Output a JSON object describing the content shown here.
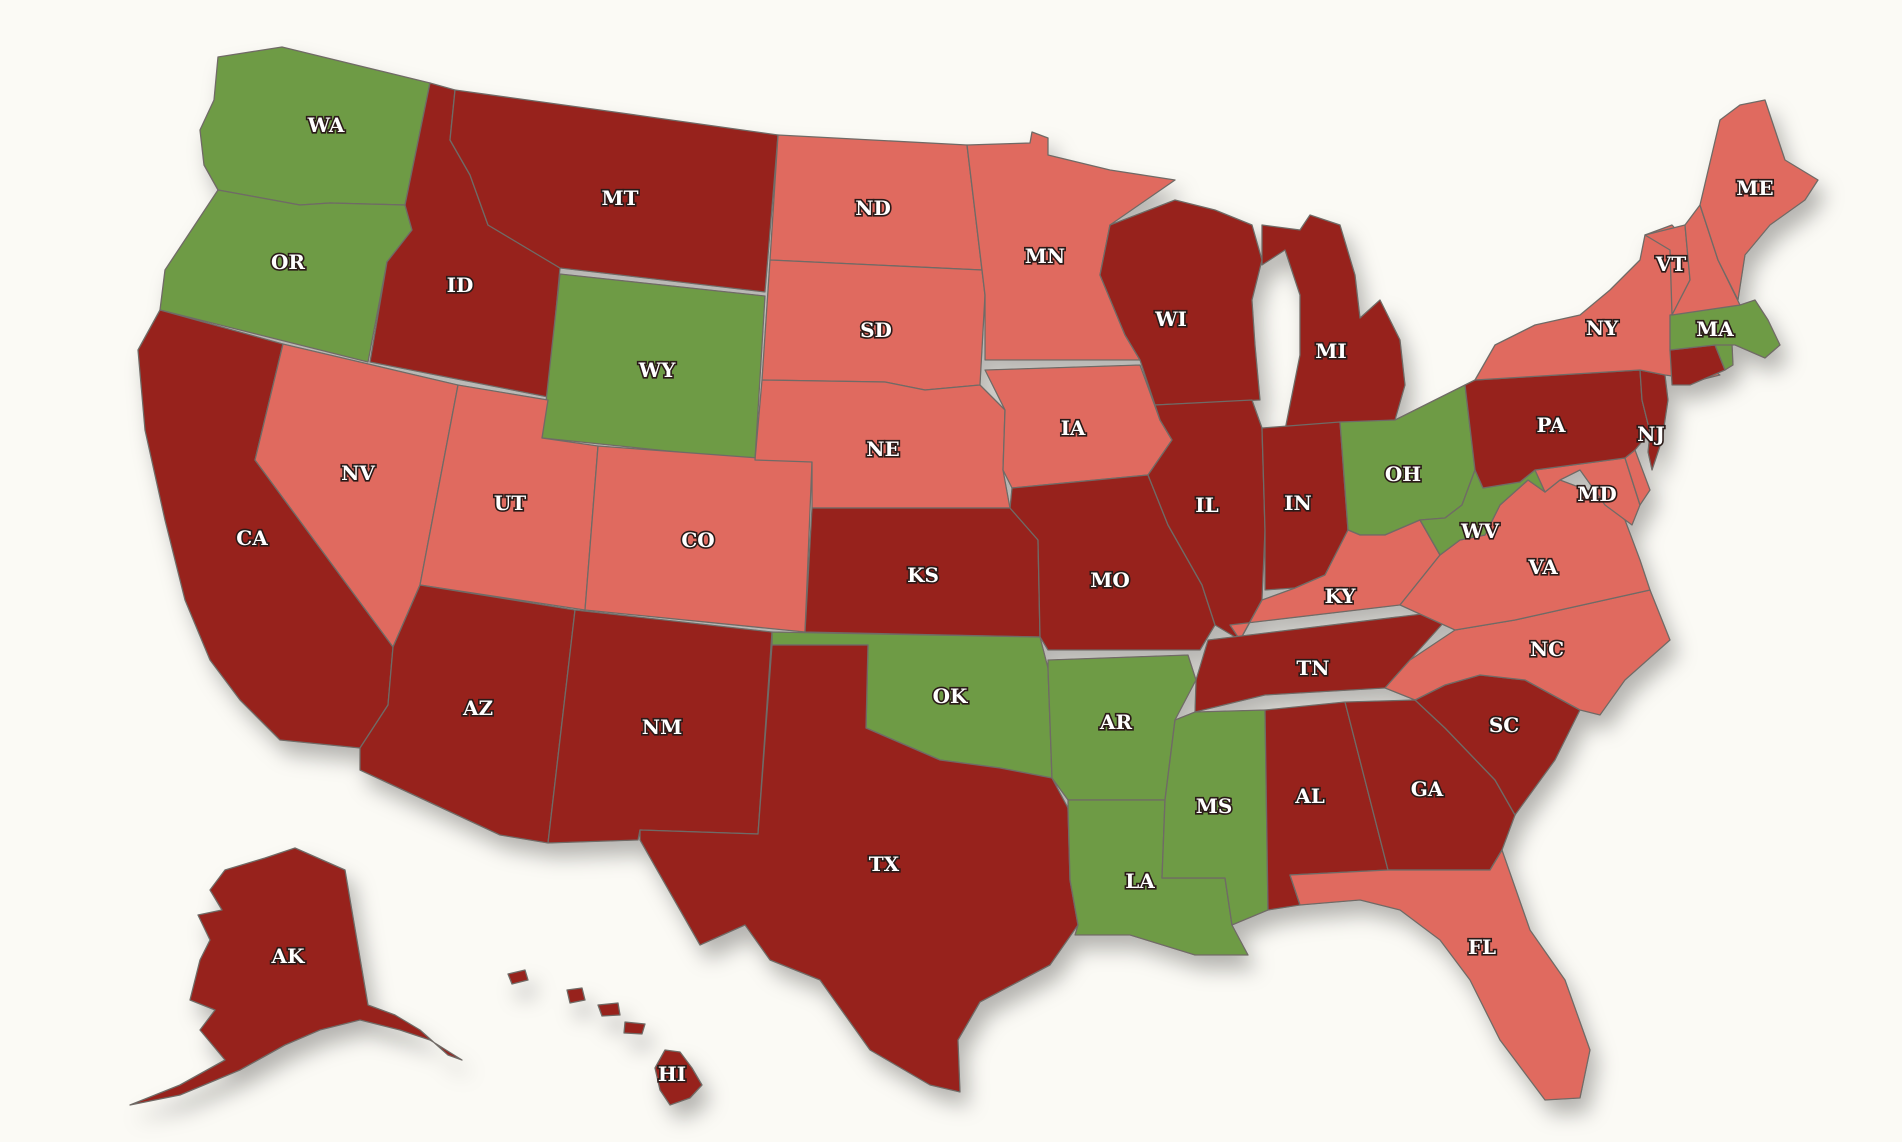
{
  "map": {
    "colors": {
      "dark": "#97221b",
      "light": "#e06a5e",
      "green": "#6e9b44",
      "background": "#fbfaf5",
      "border": "#6f6a66"
    },
    "states": [
      {
        "id": "WA",
        "label": "WA",
        "category": "green"
      },
      {
        "id": "OR",
        "label": "OR",
        "category": "green"
      },
      {
        "id": "CA",
        "label": "CA",
        "category": "dark"
      },
      {
        "id": "ID",
        "label": "ID",
        "category": "dark"
      },
      {
        "id": "NV",
        "label": "NV",
        "category": "light"
      },
      {
        "id": "MT",
        "label": "MT",
        "category": "dark"
      },
      {
        "id": "WY",
        "label": "WY",
        "category": "green"
      },
      {
        "id": "UT",
        "label": "UT",
        "category": "light"
      },
      {
        "id": "AZ",
        "label": "AZ",
        "category": "dark"
      },
      {
        "id": "CO",
        "label": "CO",
        "category": "light"
      },
      {
        "id": "NM",
        "label": "NM",
        "category": "dark"
      },
      {
        "id": "ND",
        "label": "ND",
        "category": "light"
      },
      {
        "id": "SD",
        "label": "SD",
        "category": "light"
      },
      {
        "id": "NE",
        "label": "NE",
        "category": "light"
      },
      {
        "id": "KS",
        "label": "KS",
        "category": "dark"
      },
      {
        "id": "OK",
        "label": "OK",
        "category": "green"
      },
      {
        "id": "TX",
        "label": "TX",
        "category": "dark"
      },
      {
        "id": "MN",
        "label": "MN",
        "category": "light"
      },
      {
        "id": "IA",
        "label": "IA",
        "category": "light"
      },
      {
        "id": "MO",
        "label": "MO",
        "category": "dark"
      },
      {
        "id": "AR",
        "label": "AR",
        "category": "green"
      },
      {
        "id": "LA",
        "label": "LA",
        "category": "green"
      },
      {
        "id": "WI",
        "label": "WI",
        "category": "dark"
      },
      {
        "id": "IL",
        "label": "IL",
        "category": "dark"
      },
      {
        "id": "MI",
        "label": "MI",
        "category": "dark"
      },
      {
        "id": "IN",
        "label": "IN",
        "category": "dark"
      },
      {
        "id": "OH",
        "label": "OH",
        "category": "green"
      },
      {
        "id": "KY",
        "label": "KY",
        "category": "light"
      },
      {
        "id": "TN",
        "label": "TN",
        "category": "dark"
      },
      {
        "id": "MS",
        "label": "MS",
        "category": "green"
      },
      {
        "id": "AL",
        "label": "AL",
        "category": "dark"
      },
      {
        "id": "GA",
        "label": "GA",
        "category": "dark"
      },
      {
        "id": "FL",
        "label": "FL",
        "category": "light"
      },
      {
        "id": "SC",
        "label": "SC",
        "category": "dark"
      },
      {
        "id": "NC",
        "label": "NC",
        "category": "light"
      },
      {
        "id": "VA",
        "label": "VA",
        "category": "light"
      },
      {
        "id": "WV",
        "label": "WV",
        "category": "green"
      },
      {
        "id": "MD",
        "label": "MD",
        "category": "light"
      },
      {
        "id": "DE",
        "label": "",
        "category": "light"
      },
      {
        "id": "PA",
        "label": "PA",
        "category": "dark"
      },
      {
        "id": "NJ",
        "label": "NJ",
        "category": "dark"
      },
      {
        "id": "NY",
        "label": "NY",
        "category": "light"
      },
      {
        "id": "CT",
        "label": "",
        "category": "dark"
      },
      {
        "id": "RI",
        "label": "",
        "category": "green"
      },
      {
        "id": "MA",
        "label": "MA",
        "category": "green"
      },
      {
        "id": "VT",
        "label": "VT",
        "category": "light"
      },
      {
        "id": "NH",
        "label": "",
        "category": "light"
      },
      {
        "id": "ME",
        "label": "ME",
        "category": "light"
      },
      {
        "id": "AK",
        "label": "AK",
        "category": "dark"
      },
      {
        "id": "HI",
        "label": "HI",
        "category": "dark"
      }
    ]
  }
}
